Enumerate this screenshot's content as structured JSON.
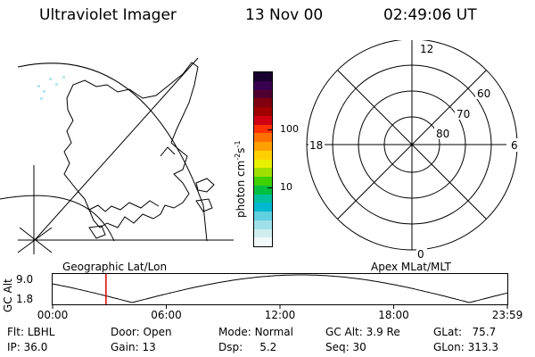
{
  "header": {
    "instrument": "Ultraviolet Imager",
    "date": "13 Nov 00",
    "time": "02:49:06 UT"
  },
  "colorbar": {
    "label": "photon cm",
    "label_sup1": "-2",
    "label_mid": "s",
    "label_sup2": "-1",
    "ticks": [
      {
        "label": "100",
        "value": 100
      },
      {
        "label": "10",
        "value": 10
      }
    ],
    "colors": [
      "#1a0030",
      "#3a0050",
      "#500030",
      "#800010",
      "#a00000",
      "#d00010",
      "#ff3000",
      "#ff7000",
      "#ffa000",
      "#ffd000",
      "#e8f000",
      "#a0e000",
      "#40d000",
      "#00c040",
      "#00c0a0",
      "#00b8d0",
      "#60d0e0",
      "#a0e0e8",
      "#d0eeee",
      "#f2f8f8"
    ]
  },
  "left_panel": {
    "label": "Geographic Lat/Lon"
  },
  "right_panel": {
    "label": "Apex MLat/MLT",
    "mlt_labels": {
      "top": "12",
      "bottom": "0",
      "left": "18",
      "right": "6"
    },
    "lat_labels": [
      "60",
      "70",
      "80"
    ]
  },
  "altitude_plot": {
    "ylabel": "GC Alt",
    "y_ticks": [
      "9.0",
      "1.8"
    ],
    "x_ticks": [
      "00:00",
      "06:00",
      "12:00",
      "18:00",
      "23:59"
    ],
    "current_time_hours": 2.818
  },
  "status": {
    "filter": {
      "label": "Flt:",
      "value": "LBHL"
    },
    "ip": {
      "label": "IP:",
      "value": "36.0"
    },
    "door": {
      "label": "Door:",
      "value": "Open"
    },
    "gain": {
      "label": "Gain:",
      "value": "13"
    },
    "mode": {
      "label": "Mode:",
      "value": "Normal"
    },
    "dsp": {
      "label": "Dsp:",
      "value": "5.2"
    },
    "gc_alt": {
      "label": "GC Alt:",
      "value": "3.9 Re"
    },
    "seq": {
      "label": "Seq:",
      "value": "30"
    },
    "glat": {
      "label": "GLat:",
      "value": "75.7"
    },
    "glon": {
      "label": "GLon:",
      "value": "313.3"
    }
  }
}
